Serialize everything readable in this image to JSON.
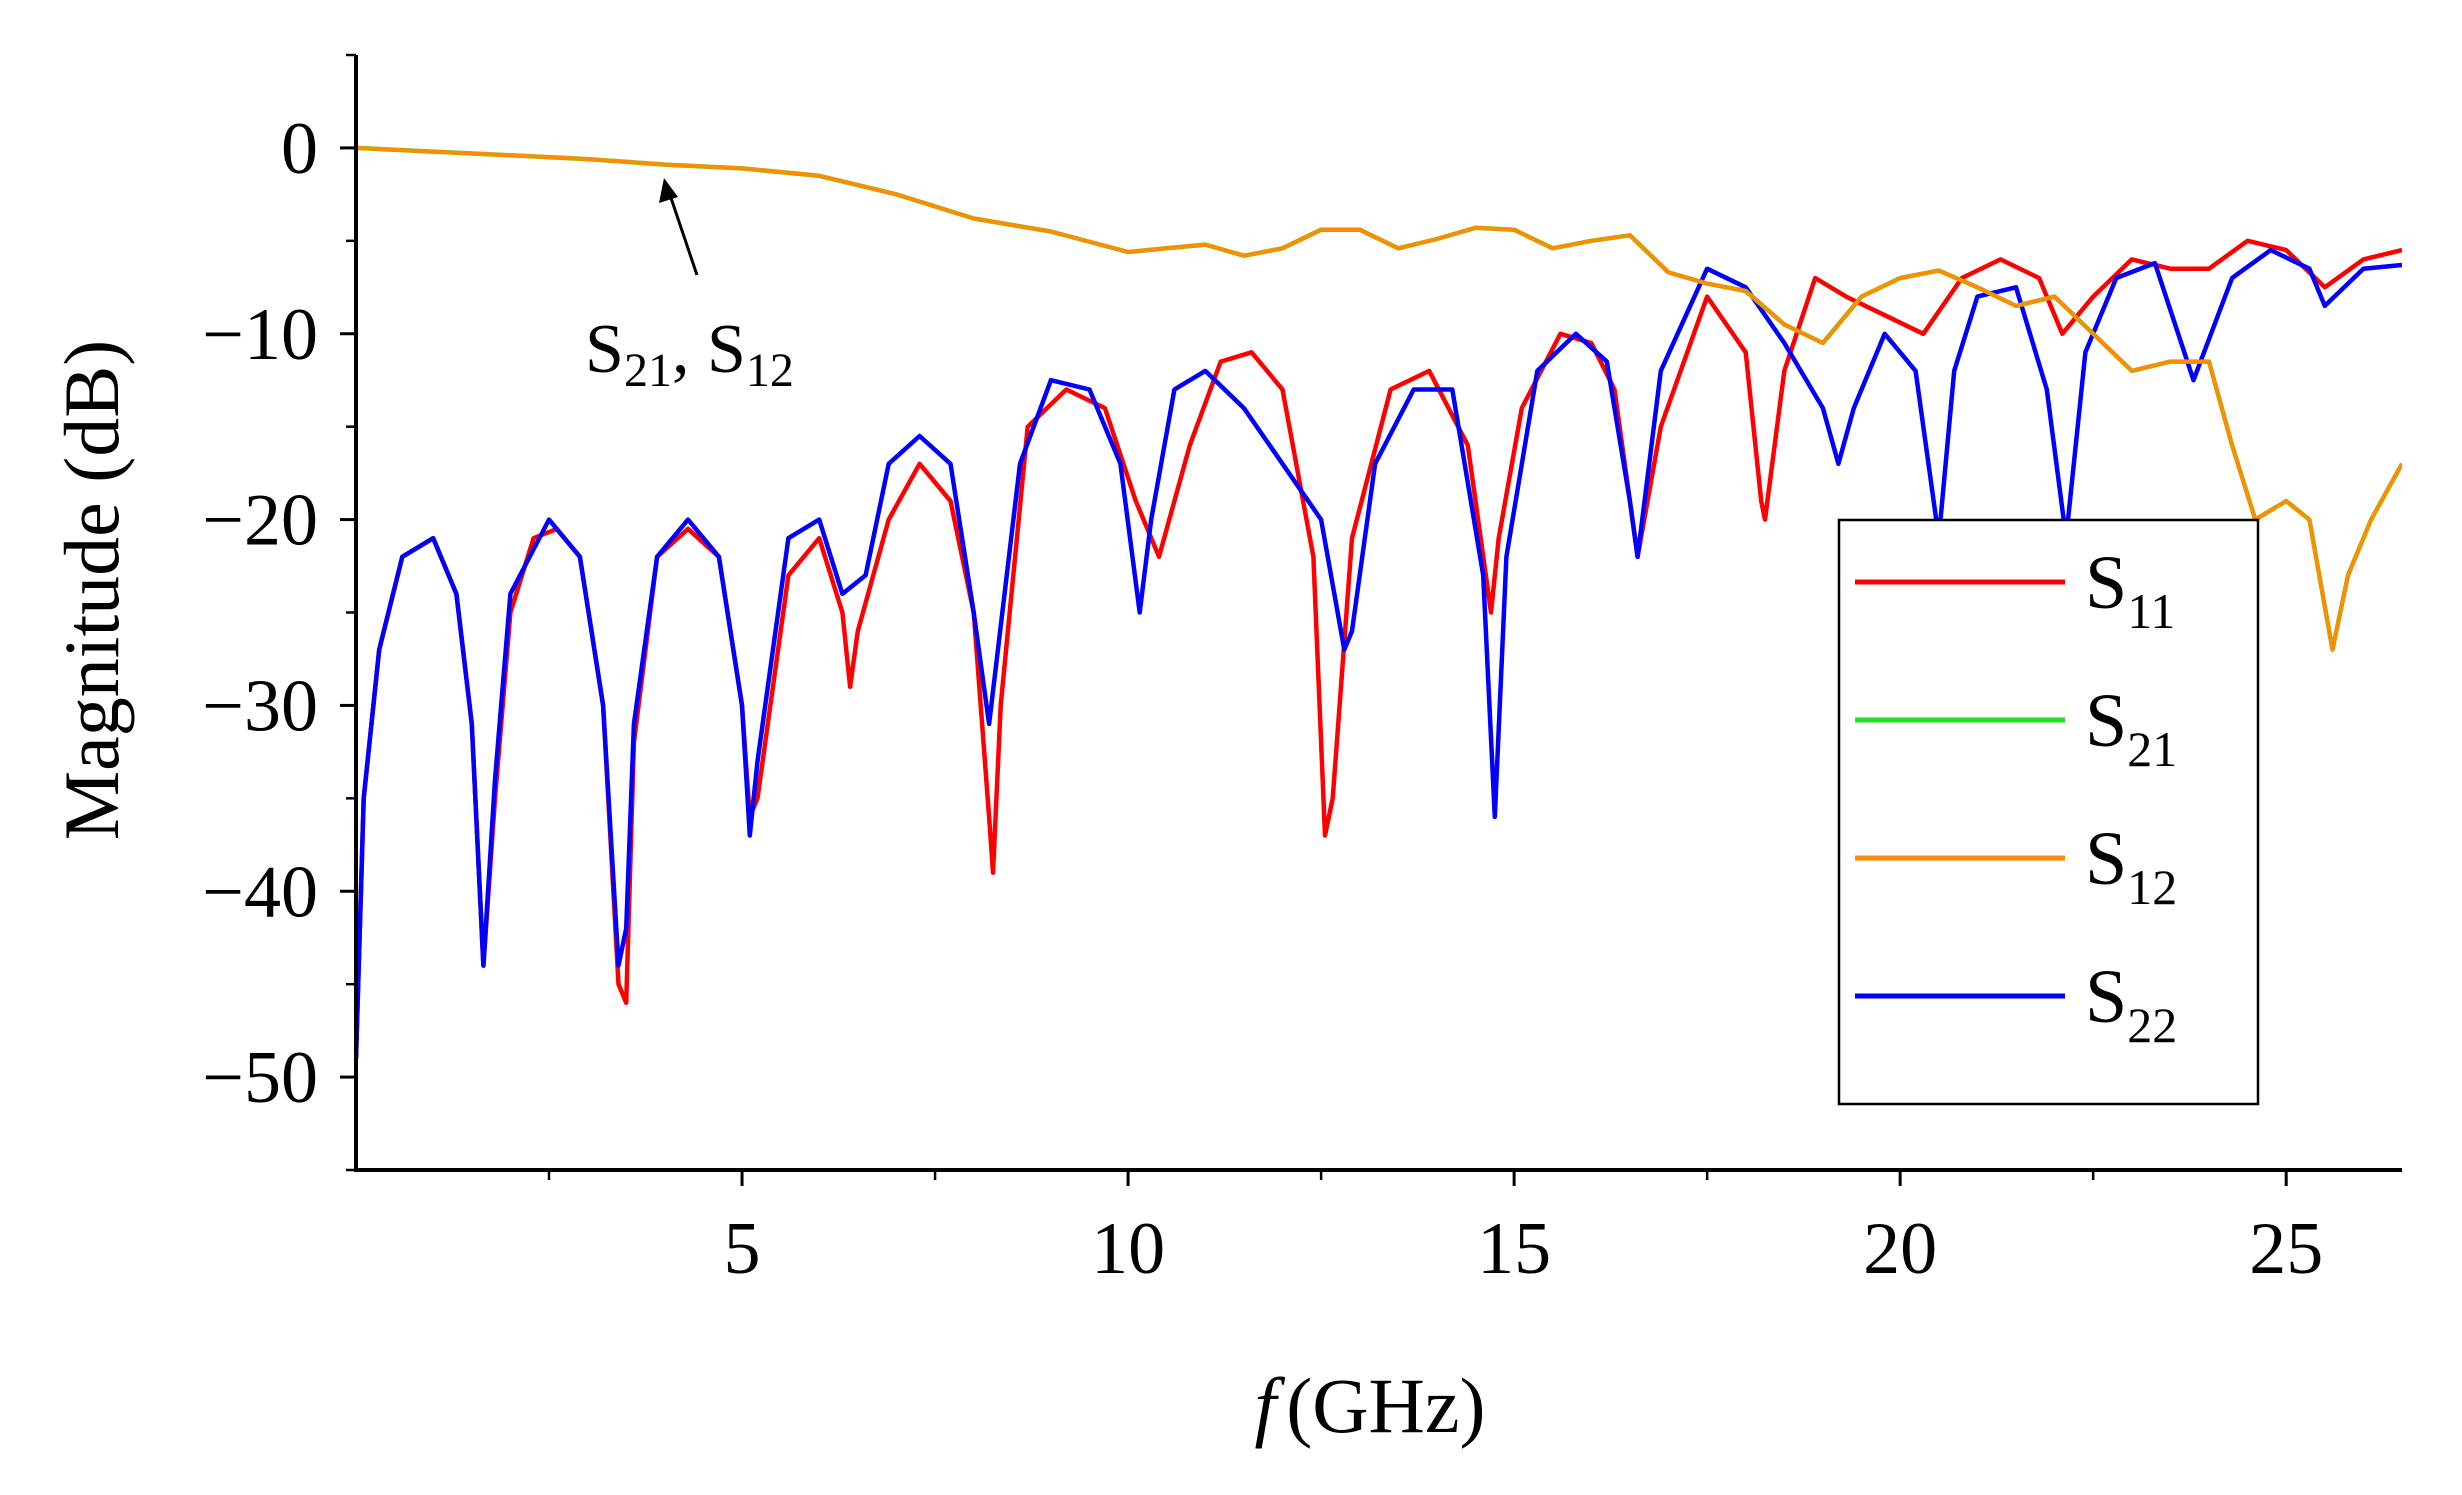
{
  "chart_data": {
    "type": "line",
    "title": "",
    "xlabel_italic": "f",
    "xlabel_unit": "(GHz)",
    "ylabel": "Magnitude (dB)",
    "xlim": [
      0,
      26.5
    ],
    "ylim": [
      -55,
      5
    ],
    "xticks": [
      5,
      10,
      15,
      20,
      25
    ],
    "xtick_labels": [
      "5",
      "10",
      "15",
      "20",
      "25"
    ],
    "yticks": [
      0,
      -10,
      -20,
      -30,
      -40,
      -50
    ],
    "ytick_labels": [
      "0",
      "−10",
      "−20",
      "−30",
      "−40",
      "−50"
    ],
    "annotation": {
      "text": "S",
      "sub1": "21",
      "sep": ", S",
      "sub2": "12",
      "arrow_to": [
        4.0,
        -1.9
      ]
    },
    "legend": [
      {
        "name": "S",
        "sub": "11",
        "color": "#ff0000"
      },
      {
        "name": "S",
        "sub": "21",
        "color": "#22dd22"
      },
      {
        "name": "S",
        "sub": "12",
        "color": "#ff8c00"
      },
      {
        "name": "S",
        "sub": "22",
        "color": "#0000ff"
      }
    ],
    "series": [
      {
        "name": "S11",
        "color": "#ff0000",
        "x": [
          0,
          0.1,
          0.3,
          0.6,
          1.0,
          1.3,
          1.5,
          1.65,
          1.8,
          2.0,
          2.3,
          2.6,
          2.9,
          3.2,
          3.4,
          3.5,
          3.6,
          3.9,
          4.3,
          4.7,
          5.0,
          5.1,
          5.2,
          5.6,
          6.0,
          6.3,
          6.4,
          6.5,
          6.9,
          7.3,
          7.7,
          8.0,
          8.2,
          8.25,
          8.35,
          8.7,
          9.2,
          9.7,
          10.1,
          10.4,
          10.8,
          11.2,
          11.6,
          12.0,
          12.4,
          12.55,
          12.65,
          12.9,
          13.4,
          13.9,
          14.4,
          14.7,
          14.8,
          15.1,
          15.6,
          16.0,
          16.3,
          16.5,
          16.6,
          16.9,
          17.5,
          18.0,
          18.2,
          18.25,
          18.5,
          18.9,
          19.3,
          19.8,
          20.3,
          20.8,
          21.3,
          21.8,
          22.1,
          22.5,
          23.0,
          23.5,
          24.0,
          24.5,
          25.0,
          25.5,
          26.0,
          26.5
        ],
        "y": [
          -49,
          -35,
          -27,
          -22,
          -21,
          -24,
          -31,
          -44,
          -35,
          -25,
          -21,
          -20.5,
          -22,
          -30,
          -45,
          -46,
          -32,
          -22,
          -20.5,
          -22,
          -30,
          -36,
          -35,
          -23,
          -21,
          -25,
          -29,
          -26,
          -20,
          -17,
          -19,
          -25,
          -36,
          -39,
          -30,
          -15,
          -13,
          -14,
          -19,
          -22,
          -16,
          -11.5,
          -11,
          -13,
          -22,
          -37,
          -35,
          -21,
          -13,
          -12,
          -16,
          -25,
          -21,
          -14,
          -10,
          -10.5,
          -13,
          -19,
          -22,
          -15,
          -8,
          -11,
          -19,
          -20,
          -12,
          -7,
          -8,
          -9,
          -10,
          -7,
          -6,
          -7,
          -10,
          -8,
          -6,
          -6.5,
          -6.5,
          -5,
          -5.5,
          -7.5,
          -6,
          -5.5
        ]
      },
      {
        "name": "S21",
        "color": "#22dd22",
        "x": [
          0,
          1,
          2,
          3,
          4,
          5,
          6,
          7,
          8,
          9,
          10,
          10.5,
          11,
          11.5,
          12,
          12.5,
          13,
          13.5,
          14,
          14.5,
          15,
          15.5,
          16,
          16.5,
          17,
          17.5,
          18,
          18.5,
          19,
          19.5,
          20,
          20.5,
          21,
          21.5,
          22,
          22.5,
          23,
          23.5,
          24,
          24.3,
          24.6,
          25,
          25.3,
          25.6,
          25.8,
          26.1,
          26.5
        ],
        "y": [
          0,
          -0.2,
          -0.4,
          -0.6,
          -0.9,
          -1.1,
          -1.5,
          -2.5,
          -3.8,
          -4.5,
          -5.6,
          -5.4,
          -5.2,
          -5.8,
          -5.4,
          -4.4,
          -4.4,
          -5.4,
          -4.9,
          -4.3,
          -4.4,
          -5.4,
          -5.0,
          -4.7,
          -6.7,
          -7.3,
          -7.7,
          -9.5,
          -10.5,
          -8.0,
          -7.0,
          -6.6,
          -7.5,
          -8.5,
          -8.0,
          -10.0,
          -12.0,
          -11.5,
          -11.5,
          -16,
          -20,
          -19,
          -20,
          -27,
          -23,
          -20,
          -17
        ]
      },
      {
        "name": "S12",
        "color": "#ff8c00",
        "x": [
          0,
          1,
          2,
          3,
          4,
          5,
          6,
          7,
          8,
          9,
          10,
          10.5,
          11,
          11.5,
          12,
          12.5,
          13,
          13.5,
          14,
          14.5,
          15,
          15.5,
          16,
          16.5,
          17,
          17.5,
          18,
          18.5,
          19,
          19.5,
          20,
          20.5,
          21,
          21.5,
          22,
          22.5,
          23,
          23.5,
          24,
          24.3,
          24.6,
          25,
          25.3,
          25.6,
          25.8,
          26.1,
          26.5
        ],
        "y": [
          0,
          -0.2,
          -0.4,
          -0.6,
          -0.9,
          -1.1,
          -1.5,
          -2.5,
          -3.8,
          -4.5,
          -5.6,
          -5.4,
          -5.2,
          -5.8,
          -5.4,
          -4.4,
          -4.4,
          -5.4,
          -4.9,
          -4.3,
          -4.4,
          -5.4,
          -5.0,
          -4.7,
          -6.7,
          -7.3,
          -7.7,
          -9.5,
          -10.5,
          -8.0,
          -7.0,
          -6.6,
          -7.5,
          -8.5,
          -8.0,
          -10.0,
          -12.0,
          -11.5,
          -11.5,
          -16,
          -20,
          -19,
          -20,
          -27,
          -23,
          -20,
          -17
        ]
      },
      {
        "name": "S22",
        "color": "#0000ff",
        "x": [
          0,
          0.1,
          0.3,
          0.6,
          1.0,
          1.3,
          1.5,
          1.65,
          1.8,
          2.0,
          2.5,
          2.9,
          3.2,
          3.4,
          3.5,
          3.6,
          3.9,
          4.3,
          4.7,
          5.0,
          5.1,
          5.2,
          5.6,
          6.0,
          6.3,
          6.6,
          6.9,
          7.3,
          7.7,
          8.0,
          8.2,
          8.6,
          9.0,
          9.5,
          9.9,
          10.15,
          10.3,
          10.6,
          11.0,
          11.5,
          12.0,
          12.5,
          12.8,
          12.9,
          13.2,
          13.7,
          14.2,
          14.6,
          14.75,
          14.9,
          15.3,
          15.8,
          16.2,
          16.5,
          16.6,
          16.9,
          17.5,
          18.0,
          18.5,
          19.0,
          19.2,
          19.4,
          19.8,
          20.2,
          20.5,
          20.7,
          21.0,
          21.5,
          21.9,
          22.15,
          22.4,
          22.8,
          23.3,
          23.8,
          24.3,
          24.8,
          25.3,
          25.5,
          26.0,
          26.5
        ],
        "y": [
          -49,
          -35,
          -27,
          -22,
          -21,
          -24,
          -31,
          -44,
          -34,
          -24,
          -20,
          -22,
          -30,
          -44,
          -42,
          -31,
          -22,
          -20,
          -22,
          -30,
          -37,
          -33,
          -21,
          -20,
          -24,
          -23,
          -17,
          -15.5,
          -17,
          -25,
          -31,
          -17,
          -12.5,
          -13,
          -17,
          -25,
          -20,
          -13,
          -12,
          -14,
          -17,
          -20,
          -27,
          -26,
          -17,
          -13,
          -13,
          -23,
          -36,
          -22,
          -12,
          -10,
          -11.5,
          -19,
          -22,
          -12,
          -6.5,
          -7.5,
          -10.5,
          -14,
          -17,
          -14,
          -10,
          -12,
          -21,
          -12,
          -8,
          -7.5,
          -13,
          -21,
          -11,
          -7,
          -6.2,
          -12.5,
          -7,
          -5.5,
          -6.5,
          -8.5,
          -6.5,
          -6.3
        ]
      }
    ]
  }
}
